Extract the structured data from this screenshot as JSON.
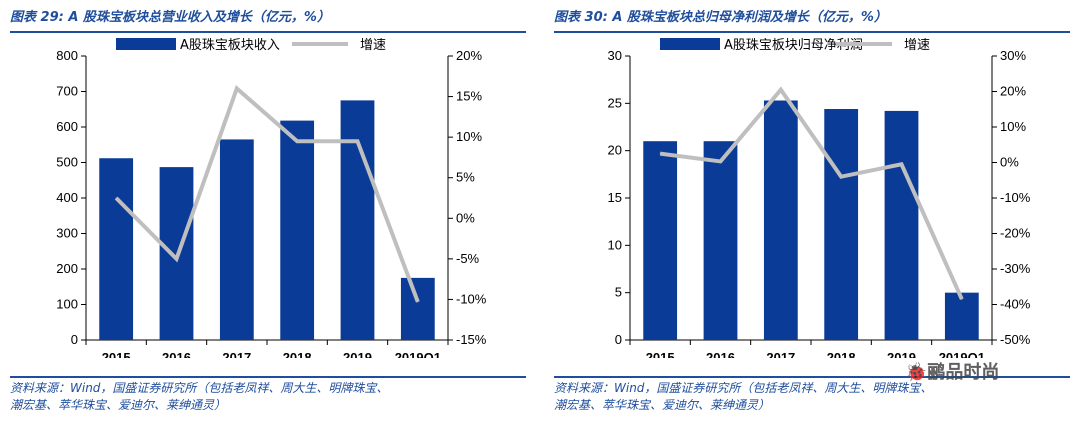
{
  "charts": [
    {
      "title": "图表 29:  A 股珠宝板块总营业收入及增长（亿元，%）",
      "source_line1": "资料来源：Wind，国盛证券研究所（包括老凤祥、周大生、明牌珠宝、",
      "source_line2": "潮宏基、萃华珠宝、爱迪尔、莱绅通灵）",
      "chart_data": {
        "type": "bar",
        "title": "图表 29:  A 股珠宝板块总营业收入及增长（亿元，%）",
        "categories": [
          "2015",
          "2016",
          "2017",
          "2018",
          "2019",
          "2019Q1"
        ],
        "series": [
          {
            "name": "A股珠宝板块收入",
            "type": "bar",
            "axis": "left",
            "color": "#0a3b96",
            "values": [
              512,
              487,
              565,
              618,
              675,
              175
            ]
          },
          {
            "name": "增速",
            "type": "line",
            "axis": "right",
            "color": "#bfbfbf",
            "values": [
              2.5,
              -5.0,
              16.0,
              9.5,
              9.5,
              -10.3
            ]
          }
        ],
        "yleft": {
          "min": 0,
          "max": 800,
          "ticks": [
            "0",
            "100",
            "200",
            "300",
            "400",
            "500",
            "600",
            "700",
            "800"
          ]
        },
        "yright": {
          "min": -15,
          "max": 20,
          "ticks": [
            "-15%",
            "-10%",
            "-5%",
            "0%",
            "5%",
            "10%",
            "15%",
            "20%"
          ]
        },
        "xlabel": "",
        "ylabel": "",
        "grid": false,
        "legend": "top"
      }
    },
    {
      "title": "图表 30:  A 股珠宝板块总归母净利润及增长（亿元，%）",
      "source_line1": "资料来源：Wind，国盛证券研究所（包括老凤祥、周大生、明牌珠宝、",
      "source_line2": "潮宏基、萃华珠宝、爱迪尔、莱绅通灵）",
      "chart_data": {
        "type": "bar",
        "title": "图表 30:  A 股珠宝板块总归母净利润及增长（亿元，%）",
        "categories": [
          "2015",
          "2016",
          "2017",
          "2018",
          "2019",
          "2019Q1"
        ],
        "series": [
          {
            "name": "A股珠宝板块归母净利润",
            "type": "bar",
            "axis": "left",
            "color": "#0a3b96",
            "values": [
              21.0,
              21.0,
              25.3,
              24.4,
              24.2,
              5.0
            ]
          },
          {
            "name": "增速",
            "type": "line",
            "axis": "right",
            "color": "#bfbfbf",
            "values": [
              2.5,
              0.3,
              20.5,
              -4.0,
              -0.5,
              -38.5
            ]
          }
        ],
        "yleft": {
          "min": 0,
          "max": 30,
          "ticks": [
            "0",
            "5",
            "10",
            "15",
            "20",
            "25",
            "30"
          ]
        },
        "yright": {
          "min": -50,
          "max": 30,
          "ticks": [
            "-50%",
            "-40%",
            "-30%",
            "-20%",
            "-10%",
            "0%",
            "10%",
            "20%",
            "30%"
          ]
        },
        "xlabel": "",
        "ylabel": "",
        "grid": false,
        "legend": "top"
      }
    }
  ],
  "watermark": "🐞鹂品时尚"
}
